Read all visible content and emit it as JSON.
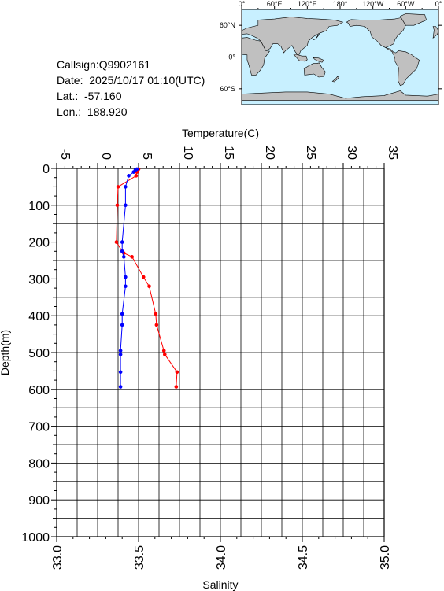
{
  "info": {
    "callsign": "Callsign:Q9902161",
    "date": "Date:  2025/10/17 01:10(UTC)",
    "lat": "Lat.:  -57.160",
    "lon": "Lon.:  188.920"
  },
  "map": {
    "top_labels": [
      "0°",
      "60°E",
      "120°E",
      "180°",
      "120°W",
      "60°W",
      "0°"
    ],
    "left_labels": [
      "60°N",
      "0°",
      "60°S"
    ],
    "ocean_color": "#c8f0ff",
    "land_color": "#c0c0c0",
    "marker_color": "#ff0000",
    "marker_icon": "star-icon"
  },
  "chart_data": {
    "type": "line",
    "y_axis": {
      "label": "Depth(m)",
      "range": [
        0,
        1000
      ],
      "ticks": [
        "0",
        "100",
        "200",
        "300",
        "400",
        "500",
        "600",
        "700",
        "800",
        "900",
        "1000"
      ],
      "inverted": true
    },
    "top_axis": {
      "label": "Temperature(C)",
      "range": [
        -5,
        35
      ],
      "ticks": [
        "-5",
        "0",
        "5",
        "10",
        "15",
        "20",
        "25",
        "30",
        "35"
      ]
    },
    "bottom_axis": {
      "label": "Salinity",
      "range": [
        33.0,
        35.0
      ],
      "ticks": [
        "33.0",
        "33.5",
        "34.0",
        "34.5",
        "35.0"
      ]
    },
    "grid": true,
    "series": [
      {
        "quantity": "temperature",
        "axis": "top",
        "color": "#ff0000",
        "points": [
          {
            "value": 5.0,
            "depth": 2
          },
          {
            "value": 4.9,
            "depth": 5
          },
          {
            "value": 4.8,
            "depth": 10
          },
          {
            "value": 4.7,
            "depth": 20
          },
          {
            "value": 2.5,
            "depth": 50
          },
          {
            "value": 2.4,
            "depth": 100
          },
          {
            "value": 2.3,
            "depth": 200
          },
          {
            "value": 3.0,
            "depth": 225
          },
          {
            "value": 3.2,
            "depth": 230
          },
          {
            "value": 4.2,
            "depth": 240
          },
          {
            "value": 5.6,
            "depth": 295
          },
          {
            "value": 6.3,
            "depth": 320
          },
          {
            "value": 7.1,
            "depth": 395
          },
          {
            "value": 7.2,
            "depth": 425
          },
          {
            "value": 8.1,
            "depth": 495
          },
          {
            "value": 8.2,
            "depth": 505
          },
          {
            "value": 9.7,
            "depth": 553
          },
          {
            "value": 9.6,
            "depth": 593
          }
        ]
      },
      {
        "quantity": "salinity",
        "axis": "bottom",
        "color": "#0000ff",
        "points": [
          {
            "value": 33.49,
            "depth": 2
          },
          {
            "value": 33.48,
            "depth": 5
          },
          {
            "value": 33.47,
            "depth": 10
          },
          {
            "value": 33.44,
            "depth": 20
          },
          {
            "value": 33.42,
            "depth": 50
          },
          {
            "value": 33.42,
            "depth": 100
          },
          {
            "value": 33.4,
            "depth": 200
          },
          {
            "value": 33.4,
            "depth": 225
          },
          {
            "value": 33.41,
            "depth": 240
          },
          {
            "value": 33.42,
            "depth": 295
          },
          {
            "value": 33.42,
            "depth": 320
          },
          {
            "value": 33.4,
            "depth": 395
          },
          {
            "value": 33.4,
            "depth": 425
          },
          {
            "value": 33.39,
            "depth": 495
          },
          {
            "value": 33.39,
            "depth": 505
          },
          {
            "value": 33.39,
            "depth": 553
          },
          {
            "value": 33.39,
            "depth": 593
          }
        ]
      }
    ]
  }
}
